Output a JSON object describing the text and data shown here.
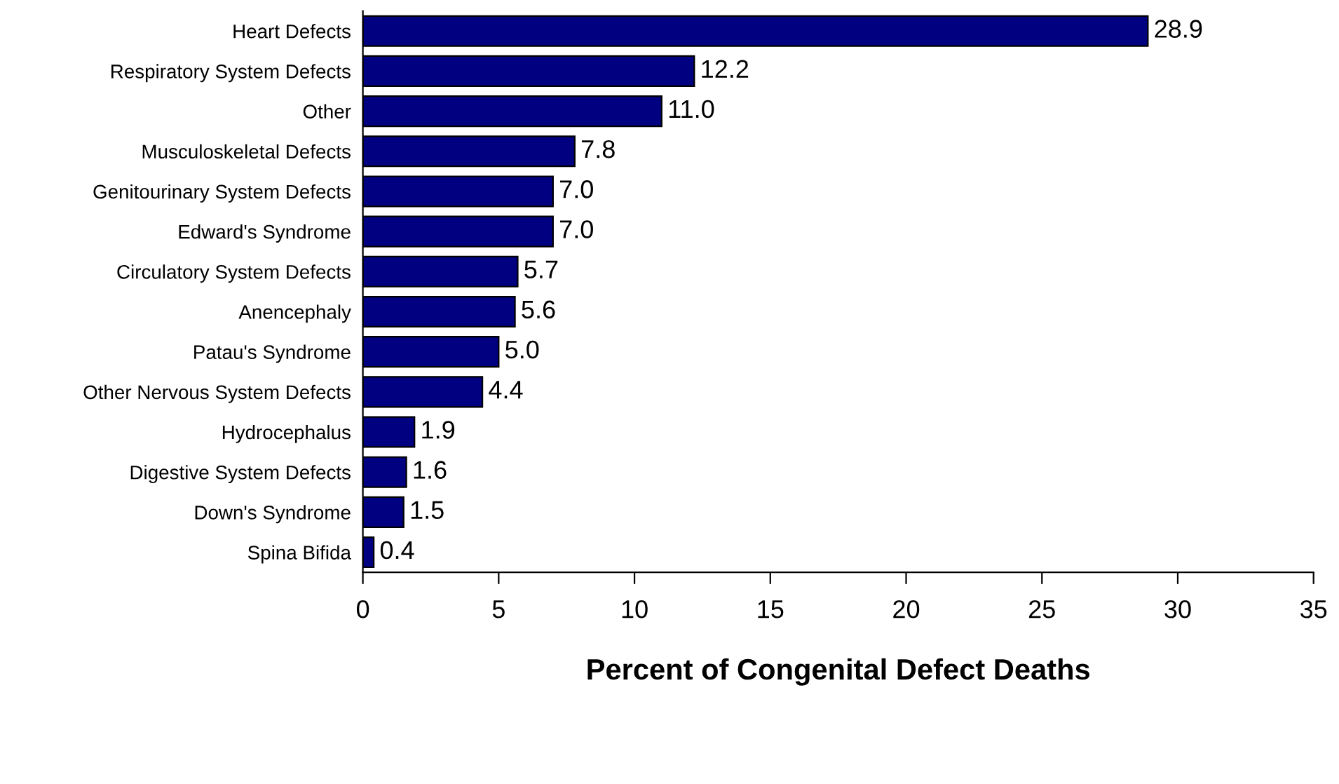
{
  "chart_data": {
    "type": "bar",
    "orientation": "horizontal",
    "xlabel": "Percent of Congenital Defect Deaths",
    "categories": [
      "Heart Defects",
      "Respiratory System Defects",
      "Other",
      "Musculoskeletal Defects",
      "Genitourinary System Defects",
      "Edward's Syndrome",
      "Circulatory System Defects",
      "Anencephaly",
      "Patau's Syndrome",
      "Other Nervous System Defects",
      "Hydrocephalus",
      "Digestive System Defects",
      "Down's Syndrome",
      "Spina Bifida"
    ],
    "values": [
      28.9,
      12.2,
      11.0,
      7.8,
      7.0,
      7.0,
      5.7,
      5.6,
      5.0,
      4.4,
      1.9,
      1.6,
      1.5,
      0.4
    ],
    "value_labels": [
      "28.9",
      "12.2",
      "11.0",
      "7.8",
      "7.0",
      "7.0",
      "5.7",
      "5.6",
      "5.0",
      "4.4",
      "1.9",
      "1.6",
      "1.5",
      "0.4"
    ],
    "color": "#000080",
    "xlim": [
      0,
      35
    ],
    "xticks": [
      0,
      5,
      10,
      15,
      20,
      25,
      30,
      35
    ],
    "grid": false
  }
}
